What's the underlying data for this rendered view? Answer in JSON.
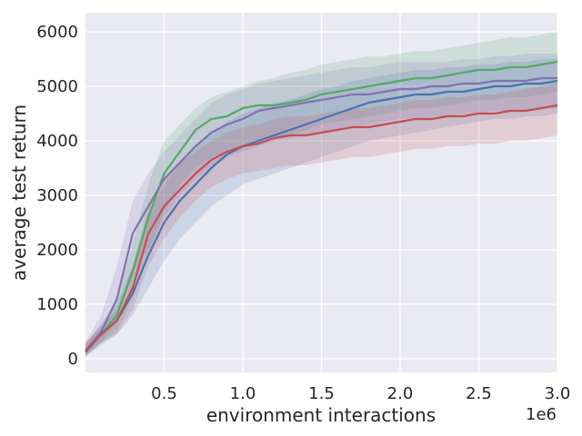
{
  "chart_data": {
    "type": "line",
    "xlabel": "environment interactions",
    "ylabel": "average test return",
    "x_offset_label": "1e6",
    "xlim": [
      0.0,
      3.0
    ],
    "ylim": [
      -250,
      6350
    ],
    "xticks": [
      0.5,
      1.0,
      1.5,
      2.0,
      2.5,
      3.0
    ],
    "xtick_labels": [
      "0.5",
      "1.0",
      "1.5",
      "2.0",
      "2.5",
      "3.0"
    ],
    "yticks": [
      0,
      1000,
      2000,
      3000,
      4000,
      5000,
      6000
    ],
    "ytick_labels": [
      "0",
      "1000",
      "2000",
      "3000",
      "4000",
      "5000",
      "6000"
    ],
    "grid": true,
    "background": "#eaeaf2",
    "grid_color": "#ffffff",
    "x": [
      0.0,
      0.1,
      0.2,
      0.3,
      0.4,
      0.5,
      0.6,
      0.7,
      0.8,
      0.9,
      1.0,
      1.1,
      1.2,
      1.3,
      1.4,
      1.5,
      1.6,
      1.7,
      1.8,
      1.9,
      2.0,
      2.1,
      2.2,
      2.3,
      2.4,
      2.5,
      2.6,
      2.7,
      2.8,
      2.9,
      3.0
    ],
    "series": [
      {
        "color": "#55a868",
        "values": [
          150,
          450,
          800,
          1600,
          2600,
          3400,
          3800,
          4200,
          4400,
          4450,
          4600,
          4650,
          4650,
          4700,
          4750,
          4850,
          4900,
          4950,
          5000,
          5050,
          5100,
          5150,
          5150,
          5200,
          5250,
          5300,
          5300,
          5350,
          5350,
          5400,
          5450
        ],
        "lower": [
          50,
          300,
          500,
          1100,
          1900,
          2700,
          3200,
          3500,
          3700,
          3800,
          3900,
          4000,
          4050,
          4100,
          4200,
          4300,
          4350,
          4400,
          4450,
          4500,
          4550,
          4600,
          4600,
          4650,
          4700,
          4750,
          4750,
          4800,
          4800,
          4850,
          4900
        ],
        "upper": [
          300,
          600,
          1100,
          2100,
          3200,
          4000,
          4300,
          4600,
          4800,
          4900,
          5000,
          5100,
          5150,
          5250,
          5300,
          5400,
          5450,
          5500,
          5550,
          5550,
          5600,
          5650,
          5650,
          5700,
          5750,
          5800,
          5850,
          5900,
          5900,
          5950,
          6000
        ]
      },
      {
        "color": "#8172b2",
        "values": [
          150,
          500,
          1100,
          2300,
          2800,
          3300,
          3600,
          3900,
          4150,
          4300,
          4400,
          4550,
          4600,
          4650,
          4700,
          4750,
          4800,
          4850,
          4850,
          4900,
          4950,
          4950,
          5000,
          5000,
          5050,
          5050,
          5100,
          5100,
          5100,
          5150,
          5150
        ],
        "lower": [
          50,
          300,
          700,
          1600,
          2000,
          2600,
          3000,
          3300,
          3500,
          3700,
          3800,
          3900,
          4000,
          4050,
          4100,
          4150,
          4200,
          4250,
          4300,
          4350,
          4400,
          4400,
          4450,
          4450,
          4500,
          4500,
          4550,
          4550,
          4550,
          4600,
          4600
        ],
        "upper": [
          300,
          800,
          1700,
          2900,
          3400,
          3800,
          4100,
          4400,
          4700,
          4850,
          4950,
          5050,
          5100,
          5150,
          5200,
          5250,
          5300,
          5350,
          5350,
          5400,
          5450,
          5450,
          5450,
          5450,
          5500,
          5500,
          5550,
          5550,
          5600,
          5600,
          5600
        ]
      },
      {
        "color": "#4c72b0",
        "values": [
          120,
          450,
          700,
          1200,
          1900,
          2500,
          2900,
          3200,
          3500,
          3750,
          3900,
          4000,
          4100,
          4200,
          4300,
          4400,
          4500,
          4600,
          4700,
          4750,
          4800,
          4850,
          4850,
          4900,
          4900,
          4950,
          5000,
          5000,
          5050,
          5050,
          5100
        ],
        "lower": [
          40,
          250,
          450,
          800,
          1300,
          1800,
          2200,
          2500,
          2800,
          3000,
          3200,
          3300,
          3400,
          3500,
          3600,
          3700,
          3800,
          3900,
          4000,
          4050,
          4100,
          4150,
          4200,
          4250,
          4300,
          4350,
          4400,
          4400,
          4450,
          4450,
          4500
        ],
        "upper": [
          250,
          650,
          1000,
          1700,
          2600,
          3200,
          3600,
          3900,
          4150,
          4350,
          4500,
          4600,
          4700,
          4750,
          4850,
          4950,
          5000,
          5100,
          5150,
          5200,
          5250,
          5300,
          5300,
          5350,
          5350,
          5400,
          5400,
          5450,
          5450,
          5500,
          5500
        ]
      },
      {
        "color": "#c44e52",
        "values": [
          150,
          450,
          700,
          1300,
          2300,
          2800,
          3100,
          3400,
          3650,
          3800,
          3900,
          3950,
          4050,
          4100,
          4100,
          4150,
          4200,
          4250,
          4250,
          4300,
          4350,
          4400,
          4400,
          4450,
          4450,
          4500,
          4500,
          4550,
          4550,
          4600,
          4650
        ],
        "lower": [
          50,
          300,
          450,
          900,
          1700,
          2200,
          2600,
          2900,
          3150,
          3300,
          3400,
          3450,
          3500,
          3550,
          3550,
          3600,
          3650,
          3700,
          3700,
          3750,
          3800,
          3850,
          3850,
          3900,
          3900,
          3950,
          3950,
          4000,
          4000,
          4050,
          4100
        ],
        "upper": [
          300,
          600,
          900,
          1700,
          2800,
          3300,
          3600,
          3800,
          4000,
          4150,
          4250,
          4300,
          4400,
          4450,
          4450,
          4500,
          4550,
          4600,
          4600,
          4650,
          4700,
          4750,
          4750,
          4800,
          4800,
          4850,
          4850,
          4900,
          4950,
          5000,
          5050
        ]
      }
    ]
  }
}
